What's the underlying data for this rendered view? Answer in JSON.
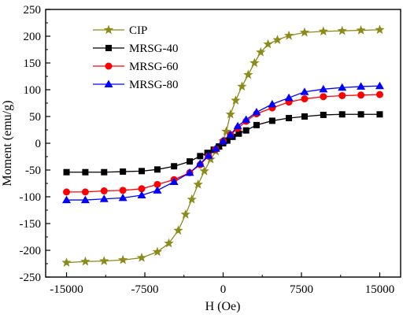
{
  "chart_data": {
    "type": "line",
    "title": "",
    "xlabel": "H (Oe)",
    "ylabel": "Moment (emu/g)",
    "xlim": [
      -17000,
      17000
    ],
    "ylim": [
      -250,
      250
    ],
    "xticks": [
      -15000,
      -7500,
      0,
      7500,
      15000
    ],
    "yticks": [
      -250,
      -200,
      -150,
      -100,
      -50,
      0,
      50,
      100,
      150,
      200,
      250
    ],
    "grid": false,
    "legend_position": "top-left",
    "series": [
      {
        "name": "CIP",
        "color": "#8b8b1a",
        "marker": "star",
        "x": [
          -15000,
          -13200,
          -11400,
          -9600,
          -7800,
          -6300,
          -5200,
          -4300,
          -3600,
          -3000,
          -2400,
          -1800,
          -1200,
          -700,
          -300,
          0,
          300,
          700,
          1200,
          1800,
          2400,
          3000,
          3600,
          4300,
          5200,
          6300,
          7800,
          9600,
          11400,
          13200,
          15000
        ],
        "y": [
          -223,
          -221,
          -220,
          -218,
          -214,
          -203,
          -187,
          -163,
          -133,
          -105,
          -77,
          -52,
          -30,
          -15,
          -5,
          4,
          22,
          54,
          80,
          106,
          128,
          150,
          170,
          185,
          193,
          201,
          207,
          209,
          210,
          211,
          212
        ]
      },
      {
        "name": "MRSG-40",
        "color": "#000000",
        "marker": "square",
        "x": [
          -15000,
          -13200,
          -11400,
          -9600,
          -7800,
          -6300,
          -4700,
          -3200,
          -2200,
          -1500,
          -900,
          -400,
          0,
          400,
          900,
          1500,
          2200,
          3200,
          4700,
          6300,
          7800,
          9600,
          11400,
          13200,
          15000
        ],
        "y": [
          -54,
          -54,
          -54,
          -53,
          -52,
          -49,
          -43,
          -34,
          -24,
          -18,
          -12,
          -6,
          0,
          5,
          12,
          18,
          24,
          34,
          42,
          47,
          50,
          53,
          54,
          54,
          54
        ]
      },
      {
        "name": "MRSG-60",
        "color": "#ff0000",
        "marker": "circle",
        "x": [
          -15000,
          -13200,
          -11400,
          -9600,
          -7800,
          -6300,
          -4700,
          -3200,
          -2200,
          -1400,
          -700,
          0,
          700,
          1400,
          2200,
          3200,
          4700,
          6300,
          7800,
          9600,
          11400,
          13200,
          15000
        ],
        "y": [
          -91,
          -91,
          -89,
          -88,
          -85,
          -77,
          -68,
          -55,
          -40,
          -24,
          -11,
          4,
          16,
          28,
          41,
          55,
          66,
          77,
          83,
          87,
          89,
          90,
          91
        ]
      },
      {
        "name": "MRSG-80",
        "color": "#0000ff",
        "marker": "triangle",
        "x": [
          -15000,
          -13200,
          -11400,
          -9600,
          -7800,
          -6300,
          -4700,
          -3200,
          -2200,
          -1400,
          -700,
          0,
          700,
          1400,
          2200,
          3200,
          4700,
          6300,
          7800,
          9600,
          11400,
          13200,
          15000
        ],
        "y": [
          -106,
          -106,
          -104,
          -102,
          -97,
          -88,
          -72,
          -55,
          -38,
          -23,
          -10,
          4,
          16,
          32,
          44,
          58,
          73,
          85,
          96,
          101,
          104,
          106,
          107
        ]
      }
    ]
  }
}
